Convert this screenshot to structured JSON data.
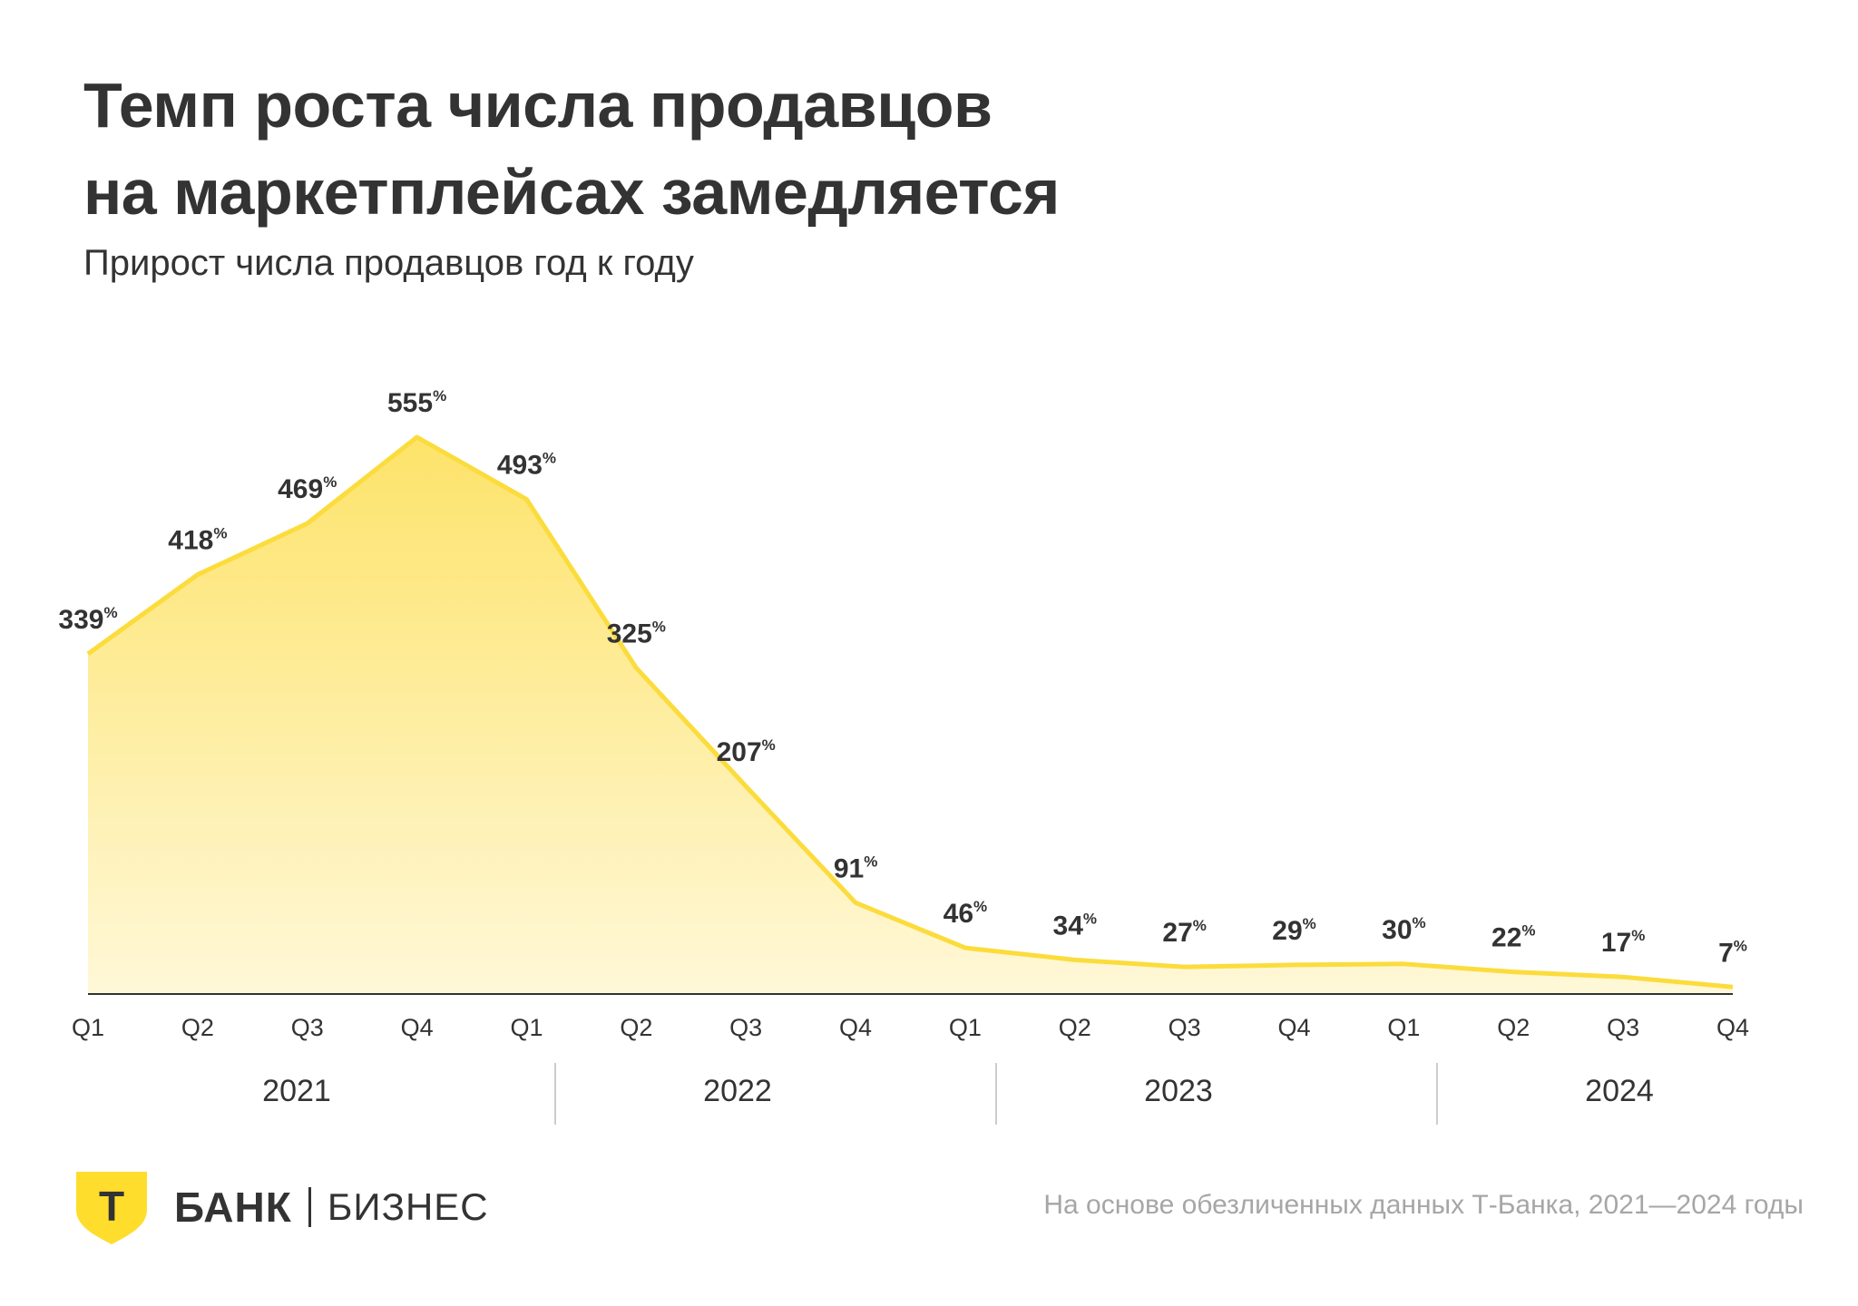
{
  "title": [
    "Темп роста числа продавцов",
    "на маркетплейсах замедляется"
  ],
  "subtitle": "Прирост числа продавцов год к году",
  "brand": {
    "bank": "БАНК",
    "business": "БИЗНЕС",
    "logo_letter": "Т"
  },
  "source": "На основе обезличенных данных Т-Банка, 2021—2024 годы",
  "colors": {
    "line": "#fbdc3c",
    "fill_top": "#fde36a",
    "fill_bottom": "#fff8d8",
    "text": "#333333",
    "muted": "#a6a6a6",
    "logo": "#ffdd2d"
  },
  "chart_data": {
    "type": "area",
    "title": "Темп роста числа продавцов на маркетплейсах замедляется",
    "subtitle": "Прирост числа продавцов год к году",
    "unit": "%",
    "categories": [
      "Q1",
      "Q2",
      "Q3",
      "Q4",
      "Q1",
      "Q2",
      "Q3",
      "Q4",
      "Q1",
      "Q2",
      "Q3",
      "Q4",
      "Q1",
      "Q2",
      "Q3",
      "Q4"
    ],
    "groups": [
      {
        "label": "2021",
        "count": 4
      },
      {
        "label": "2022",
        "count": 4
      },
      {
        "label": "2023",
        "count": 4
      },
      {
        "label": "2024",
        "count": 4
      }
    ],
    "values": [
      339,
      418,
      469,
      555,
      493,
      325,
      207,
      91,
      46,
      34,
      27,
      29,
      30,
      22,
      17,
      7
    ],
    "ylim": [
      0,
      555
    ],
    "grid": false,
    "legend": "none"
  }
}
